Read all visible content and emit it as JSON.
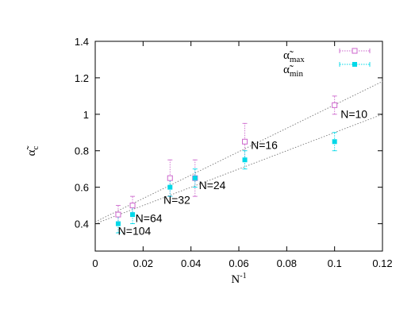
{
  "chart_data": {
    "type": "scatter",
    "xlabel": {
      "main": "N",
      "sup": "-1"
    },
    "ylabel": {
      "main": "α̃",
      "sub": "c"
    },
    "xlim": [
      0,
      0.12
    ],
    "ylim": [
      0.25,
      1.4
    ],
    "xticks": [
      0,
      0.02,
      0.04,
      0.06,
      0.08,
      0.1,
      0.12
    ],
    "xtick_labels": [
      "0",
      "0.02",
      "0.04",
      "0.06",
      "0.08",
      "0.1",
      "0.12"
    ],
    "yticks": [
      0.4,
      0.6,
      0.8,
      1.0,
      1.2,
      1.4
    ],
    "ytick_labels": [
      "0.4",
      "0.6",
      "0.8",
      "1",
      "1.2",
      "1.4"
    ],
    "grid": false,
    "legend_position": "top-right",
    "series": [
      {
        "name_main": "α̃",
        "name_sub": "max",
        "color": "#cc66cc",
        "marker": "open-square",
        "points": [
          {
            "x": 0.0096,
            "y": 0.45,
            "err": 0.05
          },
          {
            "x": 0.0156,
            "y": 0.5,
            "err": 0.05
          },
          {
            "x": 0.03125,
            "y": 0.65,
            "err": 0.1
          },
          {
            "x": 0.0417,
            "y": 0.65,
            "err": 0.1
          },
          {
            "x": 0.0625,
            "y": 0.85,
            "err": 0.1
          },
          {
            "x": 0.1,
            "y": 1.05,
            "err": 0.05
          }
        ],
        "fit": {
          "x": [
            0,
            0.12
          ],
          "y": [
            0.41,
            1.18
          ]
        }
      },
      {
        "name_main": "α̃",
        "name_sub": "min",
        "color": "#00d8e8",
        "marker": "filled-square",
        "points": [
          {
            "x": 0.0096,
            "y": 0.4,
            "err": 0.05
          },
          {
            "x": 0.0156,
            "y": 0.45,
            "err": 0.05
          },
          {
            "x": 0.03125,
            "y": 0.6,
            "err": 0.05
          },
          {
            "x": 0.0417,
            "y": 0.65,
            "err": 0.05
          },
          {
            "x": 0.0625,
            "y": 0.75,
            "err": 0.05
          },
          {
            "x": 0.1,
            "y": 0.85,
            "err": 0.05
          }
        ],
        "fit": {
          "x": [
            0,
            0.12
          ],
          "y": [
            0.4,
            1.0
          ]
        }
      }
    ],
    "annotations": [
      {
        "text": "N=10",
        "x": 0.1025,
        "y": 0.98
      },
      {
        "text": "N=16",
        "x": 0.065,
        "y": 0.81
      },
      {
        "text": "N=24",
        "x": 0.0433,
        "y": 0.59
      },
      {
        "text": "N=32",
        "x": 0.0285,
        "y": 0.51
      },
      {
        "text": "N=64",
        "x": 0.0168,
        "y": 0.41
      },
      {
        "text": "N=104",
        "x": 0.0095,
        "y": 0.34
      }
    ]
  }
}
